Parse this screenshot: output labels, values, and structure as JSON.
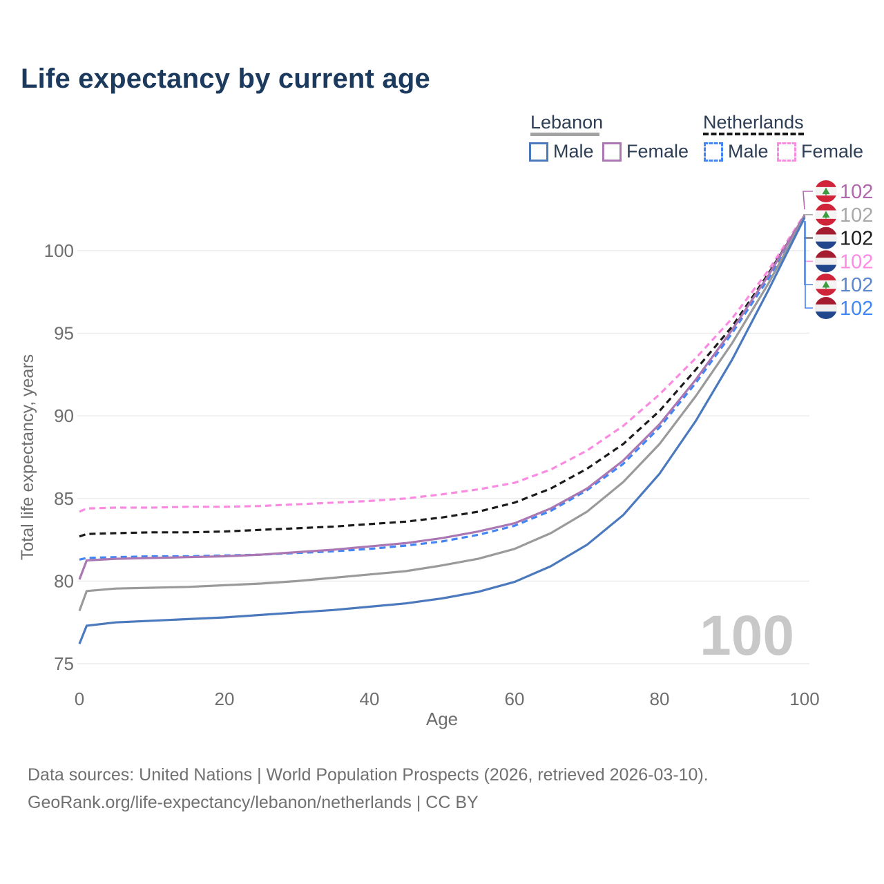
{
  "title": "Life expectancy by current age",
  "legend": {
    "groups": [
      {
        "country": "Lebanon",
        "line_style": "solid",
        "underline_color": "#a3a3a3",
        "items": [
          {
            "label": "Male",
            "color": "#4b79bd",
            "dashed": false
          },
          {
            "label": "Female",
            "color": "#aa77b2",
            "dashed": false
          }
        ]
      },
      {
        "country": "Netherlands",
        "line_style": "dashed",
        "underline_color": "#161616",
        "items": [
          {
            "label": "Male",
            "color": "#4285f4",
            "dashed": true
          },
          {
            "label": "Female",
            "color": "#fb8ae1",
            "dashed": true
          }
        ]
      }
    ]
  },
  "chart_data": {
    "type": "line",
    "title": "Life expectancy by current age",
    "xlabel": "Age",
    "ylabel": "Total life expectancy, years",
    "xlim": [
      0,
      100
    ],
    "ylim": [
      75,
      102.5
    ],
    "x_ticks": [
      0,
      20,
      40,
      60,
      80,
      100
    ],
    "y_ticks": [
      75,
      80,
      85,
      90,
      95,
      100
    ],
    "grid": "horizontal-only",
    "grid_color": "#ebebeb",
    "tick_color": "#6e6e6e",
    "watermark": "100",
    "watermark_color": "#c8c8c8",
    "x": [
      0,
      1,
      5,
      10,
      15,
      20,
      25,
      30,
      35,
      40,
      45,
      50,
      55,
      60,
      65,
      70,
      75,
      80,
      85,
      90,
      95,
      100
    ],
    "series": [
      {
        "name": "Netherlands Female",
        "country": "netherlands",
        "sex": "female",
        "color": "#fb8ae1",
        "dashed": true,
        "values": [
          84.2,
          84.4,
          84.45,
          84.45,
          84.5,
          84.5,
          84.55,
          84.65,
          84.75,
          84.85,
          85.0,
          85.25,
          85.55,
          85.95,
          86.75,
          87.9,
          89.4,
          91.3,
          93.5,
          95.9,
          98.8,
          102.2
        ]
      },
      {
        "name": "Netherlands Both sexes",
        "country": "netherlands",
        "sex": "both",
        "color": "#1b1b1b",
        "dashed": true,
        "values": [
          82.7,
          82.85,
          82.9,
          82.95,
          82.95,
          83.0,
          83.1,
          83.2,
          83.3,
          83.45,
          83.6,
          83.85,
          84.2,
          84.75,
          85.6,
          86.8,
          88.3,
          90.3,
          92.8,
          95.4,
          98.6,
          102.1
        ]
      },
      {
        "name": "Netherlands Male",
        "country": "netherlands",
        "sex": "male",
        "color": "#4285f4",
        "dashed": true,
        "values": [
          81.3,
          81.4,
          81.45,
          81.5,
          81.5,
          81.55,
          81.6,
          81.7,
          81.8,
          81.95,
          82.15,
          82.4,
          82.8,
          83.35,
          84.25,
          85.5,
          87.1,
          89.3,
          92.0,
          95.0,
          98.3,
          101.95
        ]
      },
      {
        "name": "Lebanon Female",
        "country": "lebanon",
        "sex": "female",
        "color": "#aa77b2",
        "dashed": false,
        "values": [
          80.1,
          81.25,
          81.35,
          81.4,
          81.45,
          81.5,
          81.6,
          81.75,
          81.9,
          82.1,
          82.3,
          82.6,
          83.0,
          83.5,
          84.4,
          85.6,
          87.3,
          89.5,
          92.2,
          95.2,
          98.5,
          102.15
        ]
      },
      {
        "name": "Lebanon Both sexes",
        "country": "lebanon",
        "sex": "both",
        "color": "#9a9a9a",
        "dashed": false,
        "values": [
          78.2,
          79.4,
          79.55,
          79.6,
          79.65,
          79.75,
          79.85,
          80.0,
          80.2,
          80.4,
          80.6,
          80.95,
          81.35,
          81.95,
          82.9,
          84.2,
          86.0,
          88.3,
          91.2,
          94.4,
          98.0,
          102.05
        ]
      },
      {
        "name": "Lebanon Male",
        "country": "lebanon",
        "sex": "male",
        "color": "#4b79bd",
        "dashed": false,
        "values": [
          76.2,
          77.3,
          77.5,
          77.6,
          77.7,
          77.8,
          77.95,
          78.1,
          78.25,
          78.45,
          78.65,
          78.95,
          79.35,
          79.95,
          80.9,
          82.2,
          84.0,
          86.5,
          89.7,
          93.4,
          97.6,
          102.0
        ]
      }
    ],
    "end_labels": [
      {
        "flag": "lebanon",
        "text": "102",
        "color": "#b168ad"
      },
      {
        "flag": "lebanon",
        "text": "102",
        "color": "#a8a8a8"
      },
      {
        "flag": "netherlands",
        "text": "102",
        "color": "#1b1b1b"
      },
      {
        "flag": "netherlands",
        "text": "102",
        "color": "#fc8be4"
      },
      {
        "flag": "lebanon",
        "text": "102",
        "color": "#5b87ca"
      },
      {
        "flag": "netherlands",
        "text": "102",
        "color": "#4285f4"
      }
    ],
    "legend_position": "top-right"
  },
  "footer": {
    "line1": "Data sources: United Nations | World Population Prospects (2026, retrieved 2026-03-10).",
    "line2": "GeoRank.org/life-expectancy/lebanon/netherlands | CC BY"
  }
}
